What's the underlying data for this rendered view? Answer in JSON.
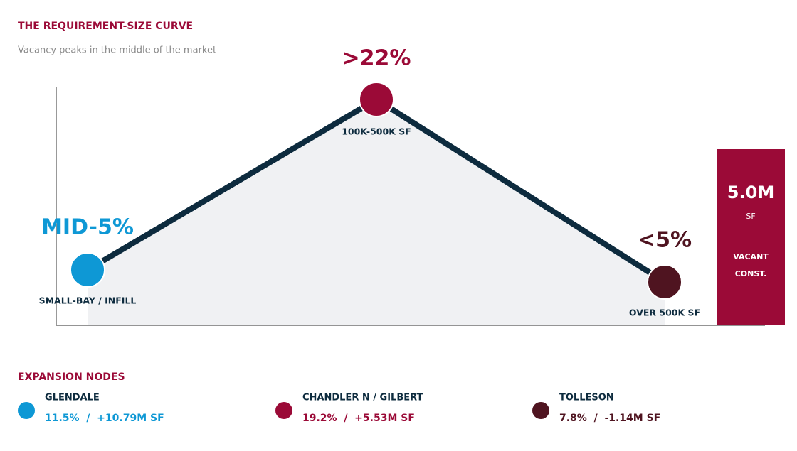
{
  "header": {
    "title": "THE REQUIREMENT-SIZE CURVE",
    "subtitle": "Vacancy peaks in the middle of the market"
  },
  "curve": {
    "points": [
      {
        "value_label": "MID-5%",
        "label": "SMALL-BAY / INFILL"
      },
      {
        "value_label": ">22%",
        "label": "100K-500K SF"
      },
      {
        "value_label": "<5%",
        "label": "OVER 500K SF"
      }
    ]
  },
  "callout": {
    "value": "5.0M",
    "unit": "SF",
    "lines": [
      "VACANT",
      "CONST."
    ]
  },
  "nodes": {
    "title": "EXPANSION NODES",
    "items": [
      {
        "name": "GLENDALE",
        "stats": "11.5%  /  +10.79M SF"
      },
      {
        "name": "CHANDLER N / GILBERT",
        "stats": "19.2%  /  +5.53M SF"
      },
      {
        "name": "TOLLESON",
        "stats": "7.8%  /  -1.14M SF"
      }
    ]
  }
}
